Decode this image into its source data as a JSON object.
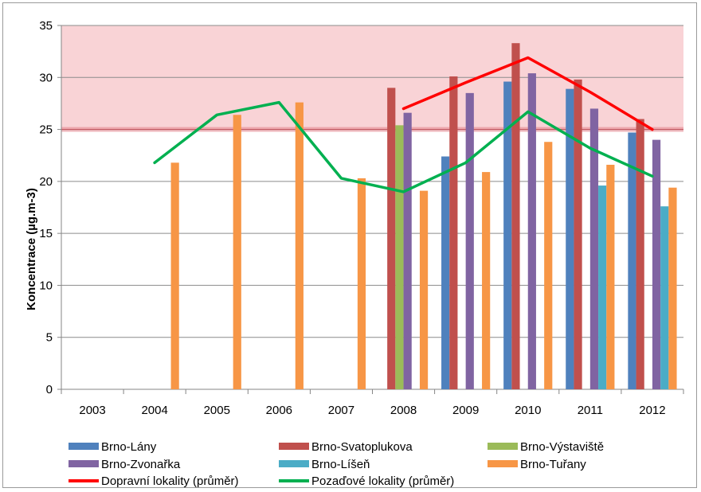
{
  "chart_data": {
    "type": "bar",
    "title": "",
    "xlabel": "",
    "ylabel": "Koncentrace (µg.m-3)",
    "ylim": [
      0,
      35
    ],
    "yticks": [
      0,
      5,
      10,
      15,
      20,
      25,
      30,
      35
    ],
    "grid": "horizontal",
    "legend_position": "bottom",
    "limit_band": {
      "from": 25,
      "to": 35,
      "color": "#f9d3d6",
      "line_value": 25,
      "line_color": "#e4838c"
    },
    "categories": [
      "2003",
      "2004",
      "2005",
      "2006",
      "2007",
      "2008",
      "2009",
      "2010",
      "2011",
      "2012"
    ],
    "series": [
      {
        "name": "Brno-Lány",
        "color": "#4f81bd",
        "values": [
          null,
          null,
          null,
          null,
          null,
          null,
          22.4,
          29.6,
          28.9,
          24.7
        ]
      },
      {
        "name": "Brno-Svatoplukova",
        "color": "#c0504d",
        "values": [
          null,
          null,
          null,
          null,
          null,
          29.0,
          30.1,
          33.3,
          29.8,
          26.0
        ]
      },
      {
        "name": "Brno-Výstaviště",
        "color": "#9bbb59",
        "values": [
          null,
          null,
          null,
          null,
          null,
          25.4,
          null,
          null,
          null,
          null
        ]
      },
      {
        "name": "Brno-Zvonařka",
        "color": "#8064a2",
        "values": [
          null,
          null,
          null,
          null,
          null,
          26.6,
          28.5,
          30.4,
          27.0,
          24.0
        ]
      },
      {
        "name": "Brno-Líšeň",
        "color": "#4bacc6",
        "values": [
          null,
          null,
          null,
          null,
          null,
          null,
          null,
          null,
          19.6,
          17.6
        ]
      },
      {
        "name": "Brno-Tuřany",
        "color": "#f79646",
        "values": [
          null,
          21.8,
          26.4,
          27.6,
          20.3,
          19.1,
          20.9,
          23.8,
          21.6,
          19.4
        ]
      }
    ],
    "lines": [
      {
        "name": "Dopravní lokality (průměr)",
        "color": "#ff0000",
        "values": [
          null,
          null,
          null,
          null,
          null,
          27.0,
          29.5,
          31.9,
          28.6,
          25.0
        ]
      },
      {
        "name": "Pozaďové lokality (průměr)",
        "color": "#00b050",
        "values": [
          null,
          21.8,
          26.4,
          27.6,
          20.3,
          19.0,
          21.8,
          26.7,
          23.2,
          20.5
        ]
      }
    ]
  }
}
